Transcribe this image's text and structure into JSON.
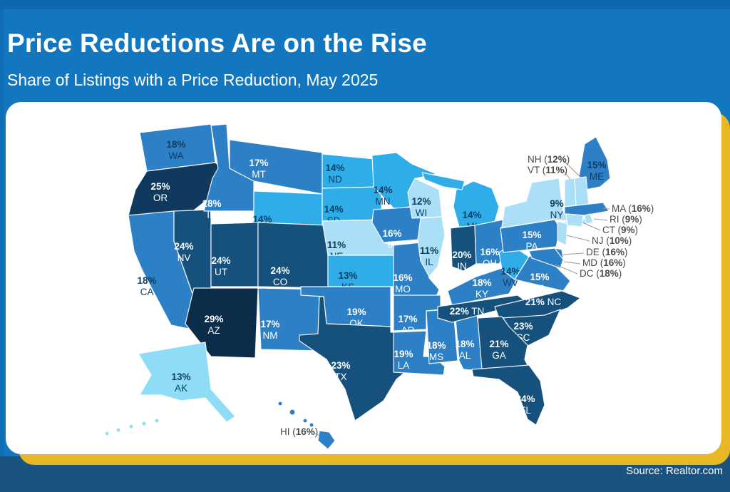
{
  "header": {
    "title": "Price Reductions Are on the Rise",
    "subtitle": "Share of Listings with a Price Reduction, May 2025"
  },
  "footer": {
    "source": "Source: Realtor.com"
  },
  "colors": {
    "background_blue": "#1377bf",
    "background_blue_dark": "#0d68ad",
    "bottom_band_navy": "#1b5380",
    "gold_accent": "#e9b625",
    "card_white": "#ffffff",
    "title_text": "#ffffff"
  },
  "chart_data": {
    "type": "heatmap",
    "subtype": "choropleth-us-map",
    "region": "United States",
    "title": "Price Reductions Are on the Rise",
    "subtitle": "Share of Listings with a Price Reduction, May 2025",
    "unit": "%",
    "source": "Source: Realtor.com",
    "legend": "none",
    "palette": {
      "pale": "#abdff7",
      "light_cyan": "#8edcf6",
      "cyan": "#2fade8",
      "medium": "#2e80c6",
      "dark": "#15517c",
      "darker": "#0f3a5e",
      "darkest": "#0b2d4a"
    },
    "label_colors": {
      "dark": "#0e3e64",
      "light": "#ffffff",
      "callout": "#4a4a4a"
    },
    "states": [
      {
        "code": "WA",
        "value": 18,
        "band": "medium",
        "label": "dark"
      },
      {
        "code": "OR",
        "value": 25,
        "band": "darker",
        "label": "light"
      },
      {
        "code": "CA",
        "value": 18,
        "band": "medium",
        "label": "dark"
      },
      {
        "code": "NV",
        "value": 24,
        "band": "dark",
        "label": "light"
      },
      {
        "code": "ID",
        "value": 18,
        "band": "medium",
        "label": "light"
      },
      {
        "code": "MT",
        "value": 17,
        "band": "medium",
        "label": "light"
      },
      {
        "code": "WY",
        "value": 14,
        "band": "cyan",
        "label": "dark"
      },
      {
        "code": "UT",
        "value": 24,
        "band": "dark",
        "label": "light"
      },
      {
        "code": "CO",
        "value": 24,
        "band": "dark",
        "label": "light"
      },
      {
        "code": "AZ",
        "value": 29,
        "band": "darkest",
        "label": "light"
      },
      {
        "code": "NM",
        "value": 17,
        "band": "medium",
        "label": "light"
      },
      {
        "code": "ND",
        "value": 14,
        "band": "cyan",
        "label": "dark"
      },
      {
        "code": "SD",
        "value": 14,
        "band": "cyan",
        "label": "dark"
      },
      {
        "code": "NE",
        "value": 11,
        "band": "pale",
        "label": "dark"
      },
      {
        "code": "KS",
        "value": 13,
        "band": "cyan",
        "label": "dark"
      },
      {
        "code": "OK",
        "value": 19,
        "band": "medium",
        "label": "light"
      },
      {
        "code": "TX",
        "value": 23,
        "band": "dark",
        "label": "light"
      },
      {
        "code": "MN",
        "value": 14,
        "band": "cyan",
        "label": "dark"
      },
      {
        "code": "IA",
        "value": 16,
        "band": "medium",
        "label": "light"
      },
      {
        "code": "MO",
        "value": 16,
        "band": "medium",
        "label": "light"
      },
      {
        "code": "AR",
        "value": 17,
        "band": "medium",
        "label": "light"
      },
      {
        "code": "LA",
        "value": 19,
        "band": "medium",
        "label": "light"
      },
      {
        "code": "WI",
        "value": 12,
        "band": "pale",
        "label": "dark"
      },
      {
        "code": "IL",
        "value": 11,
        "band": "pale",
        "label": "dark"
      },
      {
        "code": "MS",
        "value": 18,
        "band": "medium",
        "label": "light"
      },
      {
        "code": "AL",
        "value": 18,
        "band": "medium",
        "label": "light"
      },
      {
        "code": "MI",
        "value": 14,
        "band": "cyan",
        "label": "dark"
      },
      {
        "code": "IN",
        "value": 20,
        "band": "dark",
        "label": "light"
      },
      {
        "code": "OH",
        "value": 16,
        "band": "medium",
        "label": "light"
      },
      {
        "code": "KY",
        "value": 18,
        "band": "medium",
        "label": "light"
      },
      {
        "code": "TN",
        "value": 22,
        "band": "dark",
        "label": "light"
      },
      {
        "code": "WV",
        "value": 14,
        "band": "cyan",
        "label": "dark"
      },
      {
        "code": "VA",
        "value": 15,
        "band": "medium",
        "label": "light"
      },
      {
        "code": "NC",
        "value": 21,
        "band": "dark",
        "label": "light"
      },
      {
        "code": "SC",
        "value": 23,
        "band": "dark",
        "label": "light"
      },
      {
        "code": "GA",
        "value": 21,
        "band": "dark",
        "label": "light"
      },
      {
        "code": "FL",
        "value": 24,
        "band": "dark",
        "label": "light"
      },
      {
        "code": "PA",
        "value": 15,
        "band": "medium",
        "label": "light"
      },
      {
        "code": "NY",
        "value": 9,
        "band": "pale",
        "label": "dark"
      },
      {
        "code": "ME",
        "value": 15,
        "band": "medium",
        "label": "dark"
      },
      {
        "code": "VT",
        "value": 11,
        "band": "pale",
        "label": "callout"
      },
      {
        "code": "NH",
        "value": 12,
        "band": "pale",
        "label": "callout"
      },
      {
        "code": "MA",
        "value": 16,
        "band": "medium",
        "label": "callout"
      },
      {
        "code": "RI",
        "value": 9,
        "band": "pale",
        "label": "callout"
      },
      {
        "code": "CT",
        "value": 9,
        "band": "pale",
        "label": "callout"
      },
      {
        "code": "NJ",
        "value": 10,
        "band": "pale",
        "label": "callout"
      },
      {
        "code": "DE",
        "value": 16,
        "band": "medium",
        "label": "callout"
      },
      {
        "code": "MD",
        "value": 16,
        "band": "medium",
        "label": "callout"
      },
      {
        "code": "DC",
        "value": 18,
        "band": "medium",
        "label": "callout"
      },
      {
        "code": "AK",
        "value": 13,
        "band": "light_cyan",
        "label": "dark"
      },
      {
        "code": "HI",
        "value": 16,
        "band": "medium",
        "label": "callout"
      }
    ]
  }
}
